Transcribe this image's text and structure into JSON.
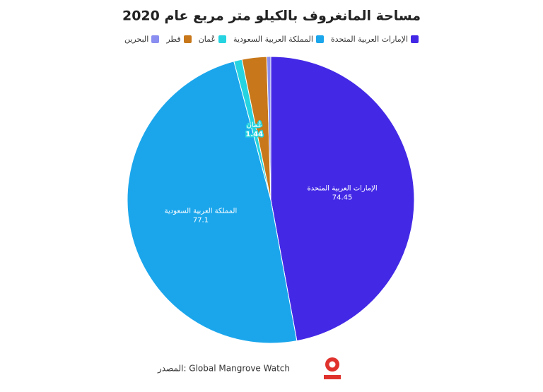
{
  "chart_data": {
    "type": "pie",
    "title": "مساحة المانغروف بالكيلو متر مربع عام 2020",
    "categories": [
      "الإمارات العربية المتحدة",
      "المملكة العربية السعودية",
      "عُمان",
      "قطر",
      "البحرين"
    ],
    "values": [
      74.45,
      77.1,
      1.44,
      4.4,
      0.7
    ],
    "colors": [
      "#4329e6",
      "#1ba6ec",
      "#25d4e0",
      "#c8781a",
      "#8a8ef0"
    ],
    "show_labels": [
      true,
      true,
      true,
      false,
      false
    ],
    "source": "المصدر: Global Mangrove Watch"
  }
}
